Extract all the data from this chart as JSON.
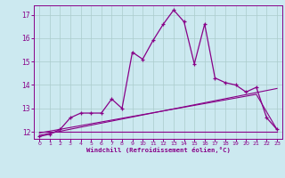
{
  "xlabel": "Windchill (Refroidissement éolien,°C)",
  "bg_color": "#cce9f0",
  "line_color": "#880088",
  "grid_color": "#aacccc",
  "xlim": [
    -0.5,
    23.5
  ],
  "ylim": [
    11.7,
    17.4
  ],
  "yticks": [
    12,
    13,
    14,
    15,
    16,
    17
  ],
  "xticks": [
    0,
    1,
    2,
    3,
    4,
    5,
    6,
    7,
    8,
    9,
    10,
    11,
    12,
    13,
    14,
    15,
    16,
    17,
    18,
    19,
    20,
    21,
    22,
    23
  ],
  "line1_x": [
    0,
    1,
    2,
    3,
    4,
    5,
    6,
    7,
    8,
    9,
    10,
    11,
    12,
    13,
    14,
    15,
    16,
    17,
    18,
    19,
    20,
    21,
    22,
    23
  ],
  "line1_y": [
    11.8,
    11.9,
    12.1,
    12.6,
    12.8,
    12.8,
    12.8,
    13.4,
    13.0,
    15.4,
    15.1,
    15.9,
    16.6,
    17.2,
    16.7,
    14.9,
    16.6,
    14.3,
    14.1,
    14.0,
    13.7,
    13.9,
    12.6,
    12.1
  ],
  "line2_x": [
    0,
    23
  ],
  "line2_y": [
    11.85,
    13.85
  ],
  "line3_x": [
    0,
    23
  ],
  "line3_y": [
    12.0,
    12.0
  ],
  "line4_x": [
    0,
    21,
    23
  ],
  "line4_y": [
    11.95,
    13.6,
    12.1
  ]
}
